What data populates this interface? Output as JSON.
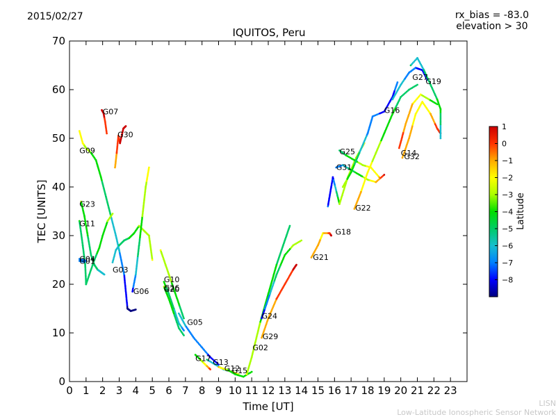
{
  "header": {
    "date": "2015/02/27",
    "rx_bias": "rx_bias = -83.0",
    "elevation": "elevation > 30"
  },
  "footer": {
    "org_short": "LISN",
    "org_long": "Low-Latitude Ionospheric Sensor Network"
  },
  "chart_data": {
    "type": "scatter",
    "title": "IQUITOS, Peru",
    "xlabel": "Time [UT]",
    "ylabel": "TEC [UNITS]",
    "xlim": [
      0,
      24
    ],
    "ylim": [
      0,
      70
    ],
    "xticks": [
      0,
      1,
      2,
      3,
      4,
      5,
      6,
      7,
      8,
      9,
      10,
      11,
      12,
      13,
      14,
      15,
      16,
      17,
      18,
      19,
      20,
      21,
      22,
      23
    ],
    "yticks": [
      0,
      10,
      20,
      30,
      40,
      50,
      60,
      70
    ],
    "colorbar": {
      "label": "Latitude",
      "range": [
        -9,
        1
      ],
      "ticks": [
        1,
        0,
        -1,
        -2,
        -3,
        -4,
        -5,
        -6,
        -7,
        -8
      ],
      "colormap": [
        "#00007f",
        "#0000ff",
        "#0080ff",
        "#17becf",
        "#00cc66",
        "#00dd00",
        "#aaff00",
        "#ffff00",
        "#ffaa00",
        "#ff3300",
        "#cc0000"
      ]
    },
    "grid": false,
    "series": [
      {
        "name": "G07",
        "label_x": 2.0,
        "label_y": 55.5,
        "points": [
          [
            1.95,
            55.8,
            0.8
          ],
          [
            2.05,
            55.2,
            0.7
          ],
          [
            2.15,
            53.5,
            0.3
          ],
          [
            2.25,
            51.0,
            -0.5
          ]
        ]
      },
      {
        "name": "G30",
        "label_x": 2.9,
        "label_y": 50.8,
        "points": [
          [
            2.75,
            44.0,
            -1.2
          ],
          [
            2.85,
            47.0,
            -0.5
          ],
          [
            2.95,
            50.5,
            0.2
          ],
          [
            3.05,
            49.0,
            0.5
          ],
          [
            3.25,
            52.0,
            0.6
          ],
          [
            3.4,
            52.5,
            0.5
          ]
        ]
      },
      {
        "name": "G09",
        "label_x": 0.6,
        "label_y": 47.5,
        "points": [
          [
            0.6,
            51.5,
            -2.0
          ],
          [
            0.8,
            49.0,
            -2.3
          ],
          [
            1.0,
            48.0,
            -2.8
          ],
          [
            1.3,
            47.0,
            -3.6
          ],
          [
            1.6,
            45.5,
            -4.0
          ],
          [
            1.9,
            42.0,
            -4.4
          ],
          [
            2.2,
            38.0,
            -5.0
          ],
          [
            2.5,
            34.0,
            -5.5
          ],
          [
            2.8,
            30.0,
            -6.0
          ],
          [
            3.0,
            27.0,
            -6.4
          ],
          [
            3.3,
            22.0,
            -7.5
          ],
          [
            3.5,
            15.0,
            -8.6
          ],
          [
            3.7,
            14.5,
            -8.8
          ],
          [
            4.0,
            14.8,
            -8.8
          ]
        ]
      },
      {
        "name": "G23",
        "label_x": 0.6,
        "label_y": 36.5,
        "points": [
          [
            0.7,
            37.0,
            -3.5
          ],
          [
            0.9,
            34.0,
            -4.0
          ],
          [
            1.1,
            30.0,
            -4.5
          ],
          [
            1.3,
            26.0,
            -4.8
          ],
          [
            1.5,
            24.0,
            -5.2
          ],
          [
            1.7,
            23.0,
            -5.5
          ],
          [
            1.9,
            22.5,
            -6.0
          ],
          [
            2.1,
            22.0,
            -6.5
          ]
        ]
      },
      {
        "name": "G11",
        "label_x": 0.6,
        "label_y": 32.5,
        "points": [
          [
            0.6,
            33.0,
            -4.5
          ],
          [
            0.8,
            28.0,
            -4.8
          ],
          [
            0.95,
            24.0,
            -5.0
          ],
          [
            1.0,
            20.0,
            -5.2
          ],
          [
            1.2,
            22.0,
            -5.0
          ],
          [
            1.5,
            25.0,
            -4.7
          ],
          [
            1.8,
            27.5,
            -4.3
          ],
          [
            2.0,
            30.0,
            -4.0
          ],
          [
            2.3,
            33.0,
            -3.5
          ],
          [
            2.6,
            34.5,
            -3.0
          ]
        ]
      },
      {
        "name": "G04",
        "label_x": 0.6,
        "label_y": 25.2,
        "points": [
          [
            0.6,
            25.2,
            -7.0
          ],
          [
            0.8,
            25.0,
            -7.2
          ],
          [
            1.0,
            24.8,
            -7.4
          ]
        ]
      },
      {
        "name": "G01",
        "label_x": 0.6,
        "label_y": 24.8,
        "points": [
          [
            0.6,
            24.8,
            -7.3
          ],
          [
            0.9,
            24.6,
            -7.5
          ]
        ]
      },
      {
        "name": "G03",
        "label_x": 2.6,
        "label_y": 23.0,
        "points": [
          [
            2.6,
            24.5,
            -6.5
          ],
          [
            2.8,
            27.0,
            -6.0
          ],
          [
            3.0,
            28.0,
            -5.5
          ],
          [
            3.3,
            29.0,
            -5.0
          ],
          [
            3.6,
            29.5,
            -4.5
          ],
          [
            3.9,
            30.5,
            -4.0
          ],
          [
            4.2,
            32.0,
            -3.5
          ],
          [
            4.5,
            31.0,
            -3.0
          ],
          [
            4.8,
            30.0,
            -2.8
          ],
          [
            5.0,
            25.0,
            -2.5
          ]
        ]
      },
      {
        "name": "G06",
        "label_x": 3.85,
        "label_y": 18.6,
        "points": [
          [
            3.8,
            18.5,
            -7.8
          ],
          [
            4.0,
            22.0,
            -6.5
          ],
          [
            4.2,
            28.0,
            -4.8
          ],
          [
            4.4,
            34.0,
            -3.5
          ],
          [
            4.6,
            40.0,
            -2.6
          ],
          [
            4.8,
            44.0,
            -2.2
          ]
        ]
      },
      {
        "name": "G10",
        "label_x": 5.7,
        "label_y": 21.0,
        "points": [
          [
            5.5,
            27.0,
            -2.5
          ],
          [
            5.8,
            24.0,
            -2.8
          ],
          [
            6.0,
            22.0,
            -3.2
          ],
          [
            6.3,
            19.0,
            -3.8
          ],
          [
            6.6,
            16.0,
            -4.4
          ],
          [
            6.9,
            13.0,
            -5.0
          ]
        ]
      },
      {
        "name": "G26",
        "label_x": 5.7,
        "label_y": 19.3,
        "points": [
          [
            5.7,
            20.5,
            -4.2
          ],
          [
            6.0,
            18.0,
            -4.8
          ],
          [
            6.3,
            15.0,
            -5.5
          ],
          [
            6.6,
            12.0,
            -6.2
          ],
          [
            6.9,
            10.5,
            -6.8
          ]
        ]
      },
      {
        "name": "G20",
        "label_x": 5.7,
        "label_y": 19.0,
        "points": [
          [
            5.7,
            19.5,
            -3.5
          ],
          [
            6.0,
            17.0,
            -3.9
          ],
          [
            6.3,
            14.0,
            -4.5
          ],
          [
            6.6,
            11.0,
            -5.0
          ],
          [
            6.9,
            9.5,
            -5.5
          ]
        ]
      },
      {
        "name": "G05",
        "label_x": 7.1,
        "label_y": 12.2,
        "points": [
          [
            6.6,
            14.0,
            -6.0
          ],
          [
            7.0,
            11.5,
            -6.5
          ],
          [
            7.5,
            9.0,
            -7.0
          ],
          [
            8.0,
            7.0,
            -7.3
          ],
          [
            8.5,
            5.0,
            -7.6
          ],
          [
            9.0,
            3.5,
            -7.8
          ]
        ]
      },
      {
        "name": "G17",
        "label_x": 7.6,
        "label_y": 4.8,
        "points": [
          [
            7.6,
            5.5,
            -4.0
          ],
          [
            7.9,
            4.5,
            -3.5
          ],
          [
            8.2,
            3.5,
            -2.0
          ],
          [
            8.5,
            2.5,
            0.2
          ]
        ]
      },
      {
        "name": "G13",
        "label_x": 8.65,
        "label_y": 4.0,
        "points": [
          [
            8.3,
            4.5,
            -5.5
          ],
          [
            8.8,
            3.5,
            -5.8
          ],
          [
            9.3,
            2.5,
            -6.0
          ],
          [
            9.8,
            2.0,
            -6.2
          ],
          [
            10.2,
            1.5,
            -6.5
          ]
        ]
      },
      {
        "name": "G12",
        "label_x": 9.35,
        "label_y": 2.7,
        "points": [
          [
            9.0,
            3.0,
            -1.5
          ],
          [
            9.4,
            2.5,
            -1.8
          ],
          [
            9.8,
            2.0,
            -2.0
          ],
          [
            10.2,
            1.5,
            -2.3
          ]
        ]
      },
      {
        "name": "G15",
        "label_x": 9.8,
        "label_y": 2.3,
        "points": [
          [
            9.5,
            2.5,
            -3.5
          ],
          [
            10.0,
            1.5,
            -3.8
          ],
          [
            10.5,
            1.0,
            -4.0
          ],
          [
            11.0,
            2.0,
            -4.3
          ]
        ]
      },
      {
        "name": "G02",
        "label_x": 11.05,
        "label_y": 7.0,
        "points": [
          [
            10.7,
            1.5,
            -2.5
          ],
          [
            11.0,
            5.0,
            -3.0
          ],
          [
            11.5,
            12.0,
            -3.5
          ],
          [
            12.0,
            18.0,
            -4.0
          ],
          [
            12.5,
            24.0,
            -4.5
          ],
          [
            13.0,
            29.0,
            -5.0
          ],
          [
            13.3,
            32.0,
            -5.3
          ]
        ]
      },
      {
        "name": "G24",
        "label_x": 11.6,
        "label_y": 13.5,
        "points": [
          [
            11.6,
            13.0,
            -8.0
          ],
          [
            11.8,
            15.0,
            -7.5
          ],
          [
            12.1,
            18.0,
            -6.5
          ],
          [
            12.5,
            22.0,
            -5.0
          ],
          [
            13.0,
            26.0,
            -4.0
          ],
          [
            13.5,
            28.0,
            -3.3
          ],
          [
            14.0,
            29.0,
            -3.0
          ]
        ]
      },
      {
        "name": "G29",
        "label_x": 11.65,
        "label_y": 9.3,
        "points": [
          [
            11.6,
            9.0,
            -1.0
          ],
          [
            12.0,
            13.0,
            -0.8
          ],
          [
            12.5,
            17.0,
            -0.5
          ],
          [
            13.0,
            20.0,
            0.0
          ],
          [
            13.5,
            23.0,
            0.5
          ],
          [
            13.7,
            24.0,
            0.8
          ]
        ]
      },
      {
        "name": "G21",
        "label_x": 14.7,
        "label_y": 25.6,
        "points": [
          [
            14.6,
            25.5,
            -1.0
          ],
          [
            15.0,
            28.0,
            -1.2
          ],
          [
            15.3,
            30.5,
            -1.8
          ],
          [
            15.7,
            30.5,
            0.0
          ],
          [
            15.8,
            30.0,
            0.8
          ]
        ]
      },
      {
        "name": "G18",
        "label_x": 16.05,
        "label_y": 30.8,
        "points": [
          [
            15.6,
            36.0,
            -7.5
          ],
          [
            15.8,
            40.0,
            -7.8
          ],
          [
            15.9,
            42.0,
            -8.0
          ],
          [
            16.3,
            36.5,
            -3.5
          ],
          [
            16.8,
            42.0,
            -3.0
          ],
          [
            17.3,
            46.0,
            -2.8
          ],
          [
            17.8,
            49.0,
            -2.5
          ]
        ]
      },
      {
        "name": "G25",
        "label_x": 16.3,
        "label_y": 47.3,
        "points": [
          [
            16.3,
            47.5,
            -5.0
          ],
          [
            16.7,
            46.5,
            -4.5
          ],
          [
            17.2,
            45.5,
            -3.8
          ],
          [
            17.7,
            44.5,
            -3.0
          ],
          [
            18.2,
            44.0,
            -2.0
          ],
          [
            18.7,
            42.0,
            -1.5
          ]
        ]
      },
      {
        "name": "G31",
        "label_x": 16.1,
        "label_y": 44.1,
        "points": [
          [
            16.1,
            44.0,
            -7.0
          ],
          [
            16.5,
            44.5,
            -6.5
          ],
          [
            17.0,
            43.5,
            -5.0
          ],
          [
            17.5,
            42.5,
            -4.0
          ],
          [
            18.0,
            41.5,
            -3.0
          ],
          [
            18.5,
            41.0,
            -1.5
          ],
          [
            19.0,
            42.5,
            0.5
          ]
        ]
      },
      {
        "name": "G22",
        "label_x": 17.25,
        "label_y": 35.7,
        "points": [
          [
            17.2,
            35.5,
            -1.0
          ],
          [
            17.6,
            39.0,
            -1.5
          ],
          [
            18.0,
            43.0,
            -2.0
          ],
          [
            18.5,
            47.0,
            -3.0
          ],
          [
            19.0,
            51.0,
            -3.8
          ],
          [
            19.5,
            55.0,
            -4.3
          ],
          [
            20.0,
            58.5,
            -4.8
          ],
          [
            20.5,
            60.0,
            -5.2
          ],
          [
            21.0,
            61.0,
            -5.5
          ]
        ]
      },
      {
        "name": "G16",
        "label_x": 19.0,
        "label_y": 55.8,
        "points": [
          [
            16.5,
            40.0,
            -3.2
          ],
          [
            17.0,
            43.0,
            -3.8
          ],
          [
            17.5,
            47.0,
            -5.5
          ],
          [
            18.0,
            51.0,
            -6.6
          ],
          [
            18.3,
            54.5,
            -7.2
          ],
          [
            19.0,
            55.5,
            -7.8
          ],
          [
            19.5,
            58.5,
            -7.6
          ],
          [
            19.8,
            61.5,
            -7.4
          ]
        ]
      },
      {
        "name": "G14",
        "label_x": 20.0,
        "label_y": 47.0,
        "points": [
          [
            19.9,
            48.0,
            0.0
          ],
          [
            20.3,
            53.0,
            -0.8
          ],
          [
            20.7,
            57.0,
            -1.5
          ],
          [
            21.2,
            59.0,
            -2.5
          ],
          [
            21.7,
            58.0,
            -3.5
          ],
          [
            22.2,
            57.0,
            -4.5
          ]
        ]
      },
      {
        "name": "G32",
        "label_x": 20.2,
        "label_y": 46.3,
        "points": [
          [
            20.1,
            46.0,
            -1.0
          ],
          [
            20.5,
            50.0,
            -1.2
          ],
          [
            20.9,
            55.0,
            -1.8
          ],
          [
            21.3,
            57.5,
            -2.5
          ],
          [
            21.8,
            55.0,
            -1.5
          ],
          [
            22.2,
            52.0,
            0.0
          ],
          [
            22.4,
            51.0,
            0.7
          ]
        ]
      },
      {
        "name": "G27",
        "label_x": 20.7,
        "label_y": 62.6,
        "points": [
          [
            19.5,
            58.0,
            -5.8
          ],
          [
            20.0,
            61.0,
            -6.3
          ],
          [
            20.5,
            63.5,
            -6.8
          ],
          [
            20.9,
            64.5,
            -7.5
          ],
          [
            21.3,
            64.0,
            -8.0
          ],
          [
            21.6,
            62.0,
            -8.3
          ]
        ]
      },
      {
        "name": "G19",
        "label_x": 21.5,
        "label_y": 61.7,
        "points": [
          [
            20.6,
            65.0,
            -5.5
          ],
          [
            21.0,
            66.5,
            -6.0
          ],
          [
            21.4,
            64.0,
            -5.5
          ],
          [
            21.8,
            61.0,
            -5.0
          ],
          [
            22.2,
            58.0,
            -4.5
          ],
          [
            22.4,
            56.0,
            -4.2
          ],
          [
            22.4,
            50.0,
            -6.5
          ]
        ]
      }
    ]
  }
}
